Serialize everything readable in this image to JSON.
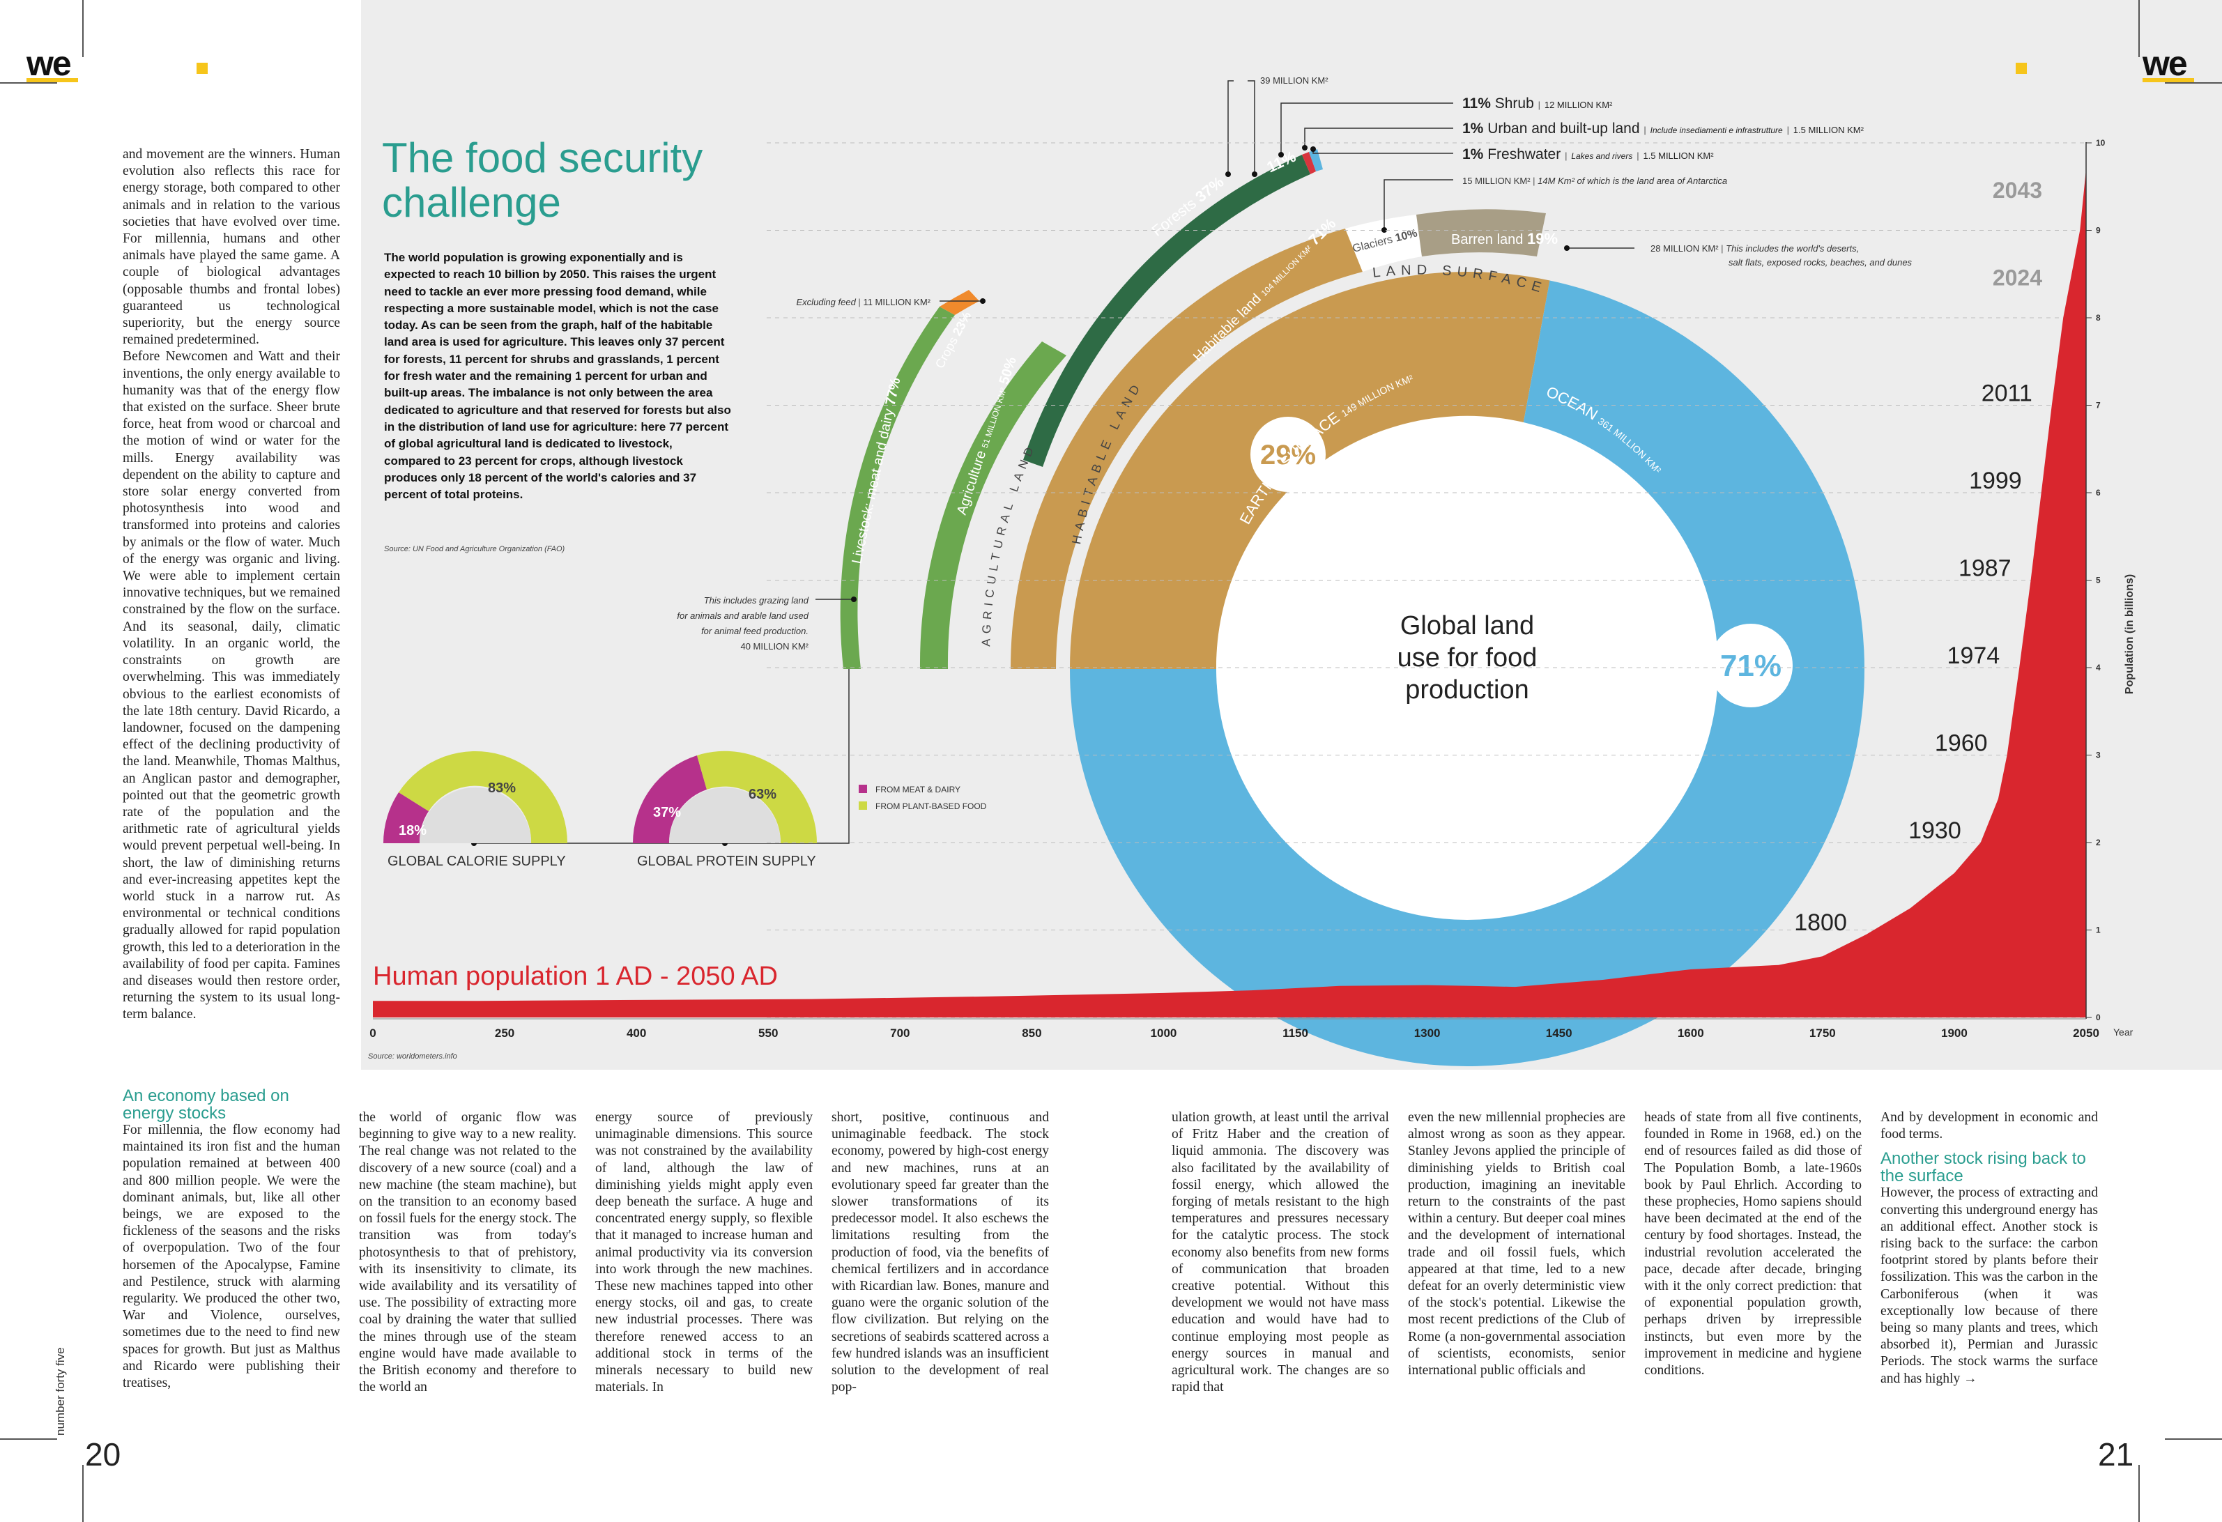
{
  "magazine": {
    "logo": "we",
    "page_left": "20",
    "page_right": "21",
    "issue_label": "number forty five"
  },
  "infographic": {
    "title_line1": "The food security",
    "title_line2": "challenge",
    "intro": "The world population is growing exponentially and is expected to reach 10 billion by 2050. This raises the urgent need to tackle an ever more pressing food demand, while respecting a more sustainable model, which is not the case today. As can be seen from the graph, half of the habitable land area is used for agriculture. This leaves only 37 percent for forests, 11 percent for shrubs and grasslands, 1 percent for fresh water and the remaining 1 percent for urban and built-up areas. The imbalance is not only between the area dedicated to agriculture and that reserved for forests but also in the distribution of land use for agriculture: here 77 percent of global agricultural land is dedicated to livestock, compared to 23 percent for crops, although livestock produces only 18 percent of the world's calories and 37 percent of total proteins.",
    "source_fao": "Source: UN Food and Agriculture Organization (FAO)",
    "source_pop": "Source: worldometers.info",
    "center_label": [
      "Global land",
      "use for food",
      "production"
    ],
    "earth_surface": {
      "label": "EARTH'S SURFACE",
      "value": "149 MILLION KM²",
      "pct": "29%"
    },
    "ocean": {
      "label": "OCEAN",
      "value": "361 MILLION KM²",
      "pct": "71%"
    },
    "land_surface": {
      "label": "LAND SURFACE"
    },
    "habitable": {
      "label": "Habitable land",
      "value": "104 MILLION KM²",
      "pct": "71%",
      "arc_label": "HABITABLE LAND"
    },
    "glaciers": {
      "label": "Glaciers",
      "pct": "10%",
      "note": "15 MILLION KM²",
      "note2": "14M Km² of which is the land area of Antarctica"
    },
    "barren": {
      "label": "Barren land",
      "pct": "19%",
      "note": "28 MILLION KM²",
      "note2a": "This includes the world's deserts,",
      "note2b": "salt flats, exposed rocks, beaches, and dunes"
    },
    "forests": {
      "label": "Forests",
      "pct": "37%",
      "note": "39 MILLION KM²"
    },
    "shrub": {
      "pct": "11%",
      "label": "Shrub",
      "note": "12 MILLION KM²"
    },
    "urban": {
      "pct": "1%",
      "label": "Urban and built-up land",
      "note": "Include insediamenti e infrastrutture",
      "note2": "1.5 MILLION KM²"
    },
    "freshwater": {
      "pct": "1%",
      "label": "Freshwater",
      "note": "Lakes and rivers",
      "note2": "1.5 MILLION KM²"
    },
    "agriculture": {
      "label": "Agriculture",
      "value": "51 MILLION KM²",
      "pct": "50%",
      "arc_label": "AGRICULTURAL LAND"
    },
    "livestock": {
      "label": "Livestock: meat and dairy",
      "pct": "77%",
      "note1": "This includes grazing land",
      "note2": "for animals and arable land used",
      "note3": "for animal feed production.",
      "note4": "40 MILLION KM²"
    },
    "crops": {
      "label": "Crops",
      "pct": "23%",
      "note1": "Excluding feed",
      "note2": "11 MILLION KM²"
    },
    "calorie": {
      "label": "GLOBAL CALORIE SUPPLY",
      "meat": "18%",
      "plant": "83%"
    },
    "protein": {
      "label": "GLOBAL PROTEIN SUPPLY",
      "meat": "37%",
      "plant": "63%"
    },
    "legend": {
      "meat": "FROM MEAT & DAIRY",
      "plant": "FROM PLANT-BASED FOOD"
    }
  },
  "chart_data": {
    "type": "area",
    "title": "Human population 1 AD - 2050 AD",
    "xlabel": "Year",
    "ylabel": "Population (in billions)",
    "xlim": [
      0,
      2050
    ],
    "ylim": [
      0,
      10
    ],
    "x_ticks": [
      "0",
      "250",
      "400",
      "550",
      "700",
      "850",
      "1000",
      "1150",
      "1300",
      "1450",
      "1600",
      "1750",
      "1900",
      "2050"
    ],
    "y_ticks": [
      "0",
      "1",
      "2",
      "3",
      "4",
      "5",
      "6",
      "7",
      "8",
      "9",
      "10"
    ],
    "x": [
      0,
      200,
      400,
      600,
      800,
      1000,
      1100,
      1200,
      1300,
      1350,
      1400,
      1500,
      1600,
      1700,
      1750,
      1800,
      1850,
      1900,
      1930,
      1950,
      1960,
      1974,
      1987,
      1999,
      2011,
      2024,
      2043,
      2050
    ],
    "values": [
      0.19,
      0.19,
      0.2,
      0.21,
      0.24,
      0.28,
      0.31,
      0.36,
      0.37,
      0.36,
      0.35,
      0.43,
      0.55,
      0.6,
      0.7,
      0.95,
      1.25,
      1.65,
      2.0,
      2.5,
      3.0,
      4.0,
      5.0,
      6.0,
      7.0,
      8.0,
      9.0,
      9.7
    ],
    "annotations": [
      "1800",
      "1930",
      "1960",
      "1974",
      "1987",
      "1999",
      "2011",
      "2024",
      "2043"
    ]
  },
  "article": {
    "left_col": "and movement are the winners. Human evolution also reflects this race for energy storage, both compared to other animals and in relation to the various societies that have evolved over time. For millennia, humans and other animals have played the same game. A couple of biological advantages (opposable thumbs and frontal lobes) guaranteed us technological superiority, but the energy source remained predetermined.",
    "left_col_2": "Before Newcomen and Watt and their inventions, the only energy available to humanity was that of the energy flow that existed on the surface. Sheer brute force, heat from wood or charcoal and the motion of wind or water for the mills. Energy availability was dependent on the ability to capture and store solar energy converted from photosynthesis into wood and transformed into proteins and calories by animals or the flow of water. Much of the energy was organic and living. We were able to implement certain innovative techniques, but we remained constrained by the flow on the surface. And its seasonal, daily, climatic volatility. In an organic world, the constraints on growth are overwhelming. This was immediately obvious to the earliest economists of the late 18th century. David Ricardo, a landowner, focused on the dampening effect of the declining productivity of the land. Meanwhile, Thomas Malthus, an Anglican pastor and demographer, pointed out that the geometric growth rate of the population and the arithmetic rate of agricultural yields would prevent perpetual well-being. In short, the law of diminishing returns and ever-increasing appetites kept the world stuck in a narrow rut. As environmental or technical conditions gradually allowed for rapid population growth, this led to a deterioration in the availability of food per capita. Famines and diseases would then restore order, returning the system to its usual long-term balance.",
    "sub1": "An economy based on energy stocks",
    "col1": "For millennia, the flow economy had maintained its iron fist and the human population remained at between 400 and 800 million people. We were the dominant animals, but, like all other beings, we are exposed to the fickleness of the seasons and the risks of overpopulation. Two of the four horsemen of the Apocalypse, Famine and Pestilence, struck with alarming regularity. We produced the other two, War and Violence, ourselves, sometimes due to the need to find new spaces for growth. But just as Malthus and Ricardo were publishing their treatises,",
    "col2": "the world of organic flow was beginning to give way to a new reality. The real change was not related to the discovery of a new source (coal) and a new machine (the steam machine), but on the transition to an economy based on fossil fuels for the energy stock. The transition was from today's photosynthesis to that of prehistory, with its insensitivity to climate, its wide availability and its versatility of use. The possibility of extracting more coal by draining the water that sullied the mines through use of the steam engine would have made available to the British economy and therefore to the world an",
    "col3": "energy source of previously unimaginable dimensions. This source was not constrained by the availability of land, although the law of diminishing yields might apply even deep beneath the surface. A huge and concentrated energy supply, so flexible that it managed to increase human and animal productivity via its conversion into work through the new machines. These new machines tapped into other energy stocks, oil and gas, to create new industrial processes. There was therefore renewed access to an additional stock in terms of the minerals necessary to build new materials. In",
    "col4": "short, positive, continuous and unimaginable feedback. The stock economy, powered by high-cost energy and new machines, runs at an evolutionary speed far greater than the slower transformations of its predecessor model. It also eschews the limitations resulting from the production of food, via the benefits of chemical fertilizers and in accordance with Ricardian law. Bones, manure and guano were the organic solution of the flow civilization. But relying on the secretions of seabirds scattered across a few hundred islands was an insufficient solution to the development of real pop-",
    "col5": "ulation growth, at least until the arrival of Fritz Haber and the creation of liquid ammonia. The discovery was also facilitated by the availability of fossil energy, which allowed the forging of metals resistant to the high temperatures and pressures necessary for the catalytic process. The stock economy also benefits from new forms of communication that broaden creative potential. Without this development we would not have mass education and would have had to continue employing most people as energy sources in manual and agricultural work. The changes are so rapid that",
    "col6": "even the new millennial prophecies are almost wrong as soon as they appear. Stanley Jevons applied the principle of diminishing yields to British coal production, imagining an inevitable return to the constraints of the past within a century. But deeper coal mines and the development of international trade and oil fossil fuels, which appeared at that time, led to a new defeat for an overly deterministic view of the stock's potential. Likewise the most recent predictions of the Club of Rome (a non-governmental association of scientists, economists, senior international public officials and",
    "col7": "heads of state from all five continents, founded in Rome in 1968, ed.) on the end of resources failed as did those of The Population Bomb, a late-1960s book by Paul Ehrlich. According to these prophecies, Homo sapiens should have been decimated at the end of the century by food shortages. Instead, the industrial revolution accelerated the pace, decade after decade, bringing with it the only correct prediction: that of exponential population growth, perhaps driven by irrepressible instincts, but even more by the improvement in medicine and hygiene conditions.",
    "col8a": "And by development in economic and food terms.",
    "sub2": "Another stock rising back to the surface",
    "col8b": "However, the process of extracting and converting this underground energy has an additional effect. Another stock is rising back to the surface: the carbon footprint stored by plants before their fossilization. This was the carbon in the Carboniferous (when it was exceptionally low because of there being so many plants and trees, which absorbed it), Permian and Jurassic Periods. The stock warms the surface and has highly →"
  }
}
